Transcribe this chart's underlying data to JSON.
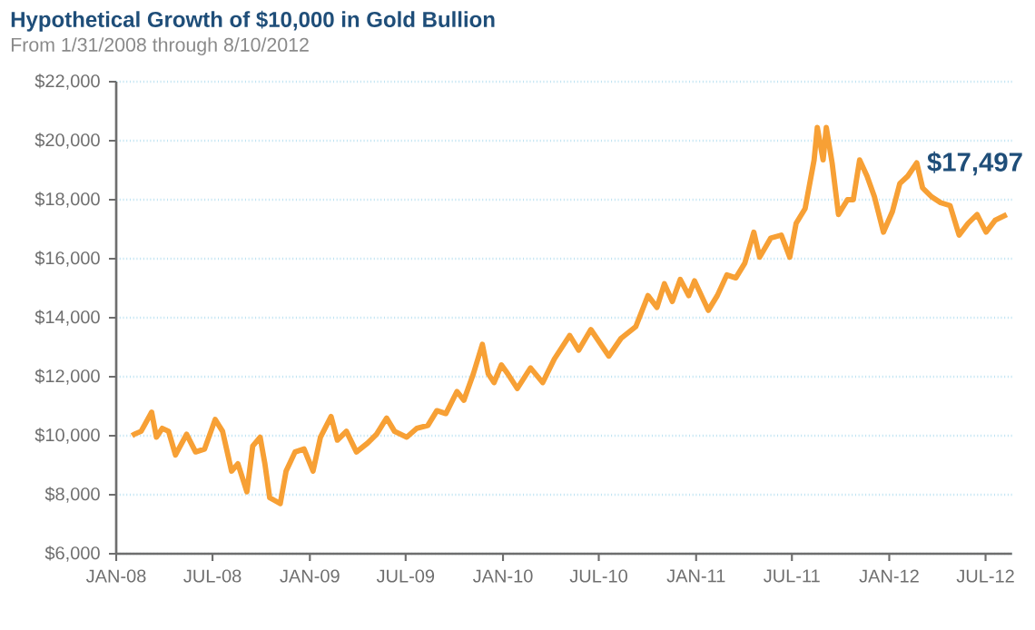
{
  "chart_data": {
    "type": "line",
    "title": "Hypothetical Growth of $10,000 in Gold Bullion",
    "subtitle": "From 1/31/2008 through 8/10/2012",
    "x": [
      "2008-01-31",
      "2008-02-04",
      "2008-02-17",
      "2008-03-08",
      "2008-03-17",
      "2008-03-28",
      "2008-04-09",
      "2008-04-22",
      "2008-05-13",
      "2008-05-30",
      "2008-06-16",
      "2008-07-06",
      "2008-07-20",
      "2008-08-06",
      "2008-08-18",
      "2008-09-04",
      "2008-09-15",
      "2008-09-29",
      "2008-10-08",
      "2008-10-17",
      "2008-11-06",
      "2008-11-17",
      "2008-12-04",
      "2008-12-21",
      "2009-01-07",
      "2009-01-21",
      "2009-02-10",
      "2009-02-22",
      "2009-03-11",
      "2009-03-30",
      "2009-04-20",
      "2009-05-07",
      "2009-05-26",
      "2009-06-10",
      "2009-07-03",
      "2009-07-22",
      "2009-08-12",
      "2009-08-29",
      "2009-09-15",
      "2009-10-06",
      "2009-10-19",
      "2009-11-06",
      "2009-11-23",
      "2009-12-04",
      "2009-12-15",
      "2009-12-29",
      "2010-01-10",
      "2010-01-28",
      "2010-02-22",
      "2010-03-17",
      "2010-04-08",
      "2010-05-07",
      "2010-05-24",
      "2010-06-16",
      "2010-07-20",
      "2010-08-12",
      "2010-09-09",
      "2010-10-02",
      "2010-10-19",
      "2010-11-02",
      "2010-11-17",
      "2010-12-02",
      "2010-12-18",
      "2010-12-29",
      "2011-01-24",
      "2011-02-10",
      "2011-02-28",
      "2011-03-17",
      "2011-04-03",
      "2011-04-20",
      "2011-05-01",
      "2011-05-22",
      "2011-06-11",
      "2011-06-27",
      "2011-07-09",
      "2011-07-26",
      "2011-08-12",
      "2011-08-18",
      "2011-08-29",
      "2011-09-04",
      "2011-09-15",
      "2011-09-27",
      "2011-10-14",
      "2011-10-25",
      "2011-11-06",
      "2011-11-20",
      "2011-12-04",
      "2011-12-21",
      "2012-01-07",
      "2012-01-21",
      "2012-02-05",
      "2012-02-22",
      "2012-03-04",
      "2012-03-21",
      "2012-04-07",
      "2012-04-25",
      "2012-05-12",
      "2012-05-29",
      "2012-06-15",
      "2012-07-02",
      "2012-07-19",
      "2012-08-10"
    ],
    "series": [
      {
        "color": "#f7a035",
        "values": [
          10000,
          10050,
          10150,
          10800,
          9950,
          10250,
          10150,
          9350,
          10050,
          9450,
          9550,
          10550,
          10150,
          8800,
          9050,
          8100,
          9650,
          9950,
          9050,
          7900,
          7700,
          8800,
          9450,
          9550,
          8800,
          9950,
          10650,
          9850,
          10150,
          9450,
          9750,
          10050,
          10600,
          10150,
          9950,
          10250,
          10350,
          10850,
          10750,
          11500,
          11200,
          12100,
          13100,
          12100,
          11800,
          12400,
          12100,
          11600,
          12300,
          11800,
          12600,
          13400,
          12900,
          13600,
          12700,
          13300,
          13700,
          14750,
          14350,
          15150,
          14550,
          15300,
          14750,
          15250,
          14250,
          14750,
          15450,
          15350,
          15850,
          16900,
          16050,
          16700,
          16800,
          16050,
          17200,
          17700,
          19350,
          20450,
          19350,
          20450,
          19250,
          17500,
          18000,
          18000,
          19350,
          18800,
          18100,
          16900,
          17600,
          18550,
          18800,
          19250,
          18400,
          18100,
          17900,
          17800,
          16800,
          17200,
          17500,
          16900,
          17300,
          17497
        ]
      }
    ],
    "xlim": [
      "2008-01-01",
      "2012-08-20"
    ],
    "xticks": [
      {
        "value": "2008-01-01",
        "label": "JAN-08"
      },
      {
        "value": "2008-07-01",
        "label": "JUL-08"
      },
      {
        "value": "2009-01-01",
        "label": "JAN-09"
      },
      {
        "value": "2009-07-01",
        "label": "JUL-09"
      },
      {
        "value": "2010-01-01",
        "label": "JAN-10"
      },
      {
        "value": "2010-07-01",
        "label": "JUL-10"
      },
      {
        "value": "2011-01-01",
        "label": "JAN-11"
      },
      {
        "value": "2011-07-01",
        "label": "JUL-11"
      },
      {
        "value": "2012-01-01",
        "label": "JAN-12"
      },
      {
        "value": "2012-07-01",
        "label": "JUL-12"
      }
    ],
    "ylim": [
      6000,
      22000
    ],
    "yticks": [
      {
        "value": 6000,
        "label": "$6,000"
      },
      {
        "value": 8000,
        "label": "$8,000"
      },
      {
        "value": 10000,
        "label": "$10,000"
      },
      {
        "value": 12000,
        "label": "$12,000"
      },
      {
        "value": 14000,
        "label": "$14,000"
      },
      {
        "value": 16000,
        "label": "$16,000"
      },
      {
        "value": 18000,
        "label": "$18,000"
      },
      {
        "value": 20000,
        "label": "$20,000"
      },
      {
        "value": 22000,
        "label": "$22,000"
      }
    ],
    "annotations": [
      {
        "text": "$17,497",
        "x": "2012-08-10",
        "y": 17497
      }
    ],
    "grid": "y",
    "marker": "none",
    "line_style": "solid"
  }
}
